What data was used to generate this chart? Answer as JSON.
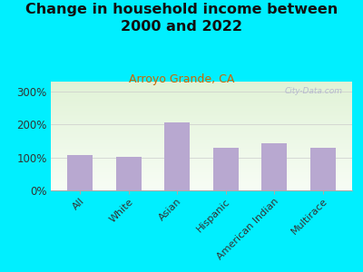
{
  "title": "Change in household income between\n2000 and 2022",
  "subtitle": "Arroyo Grande, CA",
  "categories": [
    "All",
    "White",
    "Asian",
    "Hispanic",
    "American Indian",
    "Multirace"
  ],
  "values": [
    108,
    102,
    207,
    130,
    142,
    128
  ],
  "bar_color": "#b8a8d0",
  "title_fontsize": 11.5,
  "subtitle_fontsize": 9,
  "subtitle_color": "#cc6600",
  "background_outer": "#00efff",
  "yticks": [
    0,
    100,
    200,
    300
  ],
  "ylim": [
    0,
    330
  ],
  "watermark": "City-Data.com"
}
